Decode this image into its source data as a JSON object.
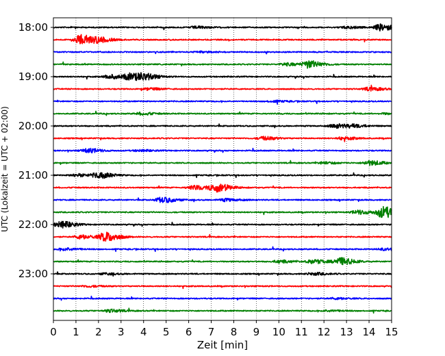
{
  "chart_data": {
    "type": "line",
    "xlabel": "Zeit  [min]",
    "ylabel": "UTC (Lokalzeit = UTC + 02:00)",
    "xlim": [
      0,
      15
    ],
    "x_ticks": [
      0,
      1,
      2,
      3,
      4,
      5,
      6,
      7,
      8,
      9,
      10,
      11,
      12,
      13,
      14,
      15
    ],
    "y_tick_labels": [
      "18:00",
      "19:00",
      "20:00",
      "21:00",
      "22:00",
      "23:00"
    ],
    "grid_vertical": "dotted",
    "trace_interval_min": 15,
    "start_time": "18:00",
    "trace_colors": [
      "#000000",
      "#ff0000",
      "#0000ff",
      "#008000"
    ],
    "traces": [
      {
        "start": "18:00",
        "events": [
          {
            "t": 14.5,
            "amp": 0.5
          },
          {
            "t": 6.3,
            "amp": 0.15
          },
          {
            "t": 13.0,
            "amp": 0.15
          }
        ]
      },
      {
        "start": "18:15",
        "events": [
          {
            "t": 1.2,
            "amp": 0.75
          },
          {
            "t": 2.0,
            "amp": 0.3
          }
        ]
      },
      {
        "start": "18:30",
        "events": [
          {
            "t": 6.5,
            "amp": 0.1
          }
        ]
      },
      {
        "start": "18:45",
        "events": [
          {
            "t": 11.3,
            "amp": 0.55
          },
          {
            "t": 10.3,
            "amp": 0.2
          }
        ]
      },
      {
        "start": "19:00",
        "events": [
          {
            "t": 3.4,
            "amp": 0.5
          },
          {
            "t": 4.0,
            "amp": 0.4
          },
          {
            "t": 2.5,
            "amp": 0.3
          }
        ]
      },
      {
        "start": "19:15",
        "events": [
          {
            "t": 14.0,
            "amp": 0.25
          },
          {
            "t": 4.2,
            "amp": 0.15
          }
        ]
      },
      {
        "start": "19:30",
        "events": [
          {
            "t": 9.7,
            "amp": 0.12
          }
        ]
      },
      {
        "start": "19:45",
        "events": [
          {
            "t": 3.9,
            "amp": 0.18
          },
          {
            "t": 14.7,
            "amp": 0.1
          }
        ]
      },
      {
        "start": "20:00",
        "events": [
          {
            "t": 12.5,
            "amp": 0.3
          },
          {
            "t": 13.3,
            "amp": 0.2
          }
        ]
      },
      {
        "start": "20:15",
        "events": [
          {
            "t": 9.3,
            "amp": 0.25
          },
          {
            "t": 12.8,
            "amp": 0.2
          }
        ]
      },
      {
        "start": "20:30",
        "events": [
          {
            "t": 1.5,
            "amp": 0.3
          },
          {
            "t": 3.8,
            "amp": 0.12
          }
        ]
      },
      {
        "start": "20:45",
        "events": [
          {
            "t": 14.0,
            "amp": 0.35
          },
          {
            "t": 12.0,
            "amp": 0.15
          }
        ]
      },
      {
        "start": "21:00",
        "events": [
          {
            "t": 2.0,
            "amp": 0.45
          },
          {
            "t": 1.0,
            "amp": 0.2
          }
        ]
      },
      {
        "start": "21:15",
        "events": [
          {
            "t": 7.2,
            "amp": 0.65
          },
          {
            "t": 6.2,
            "amp": 0.3
          }
        ]
      },
      {
        "start": "21:30",
        "events": [
          {
            "t": 4.8,
            "amp": 0.4
          },
          {
            "t": 7.6,
            "amp": 0.2
          }
        ]
      },
      {
        "start": "21:45",
        "events": [
          {
            "t": 14.6,
            "amp": 0.85
          },
          {
            "t": 13.5,
            "amp": 0.3
          }
        ]
      },
      {
        "start": "22:00",
        "events": [
          {
            "t": 0.3,
            "amp": 0.5
          }
        ]
      },
      {
        "start": "22:15",
        "events": [
          {
            "t": 2.3,
            "amp": 0.7
          },
          {
            "t": 1.2,
            "amp": 0.3
          }
        ]
      },
      {
        "start": "22:30",
        "events": [
          {
            "t": 0.5,
            "amp": 0.2
          },
          {
            "t": 14.6,
            "amp": 0.15
          }
        ]
      },
      {
        "start": "22:45",
        "events": [
          {
            "t": 12.7,
            "amp": 0.55
          },
          {
            "t": 11.5,
            "amp": 0.3
          },
          {
            "t": 10.0,
            "amp": 0.2
          }
        ]
      },
      {
        "start": "23:00",
        "events": [
          {
            "t": 11.5,
            "amp": 0.2
          },
          {
            "t": 2.3,
            "amp": 0.12
          }
        ]
      },
      {
        "start": "23:15",
        "events": [
          {
            "t": 1.5,
            "amp": 0.12
          }
        ]
      },
      {
        "start": "23:30",
        "events": [
          {
            "t": 12.5,
            "amp": 0.12
          }
        ]
      },
      {
        "start": "23:45",
        "events": [
          {
            "t": 2.5,
            "amp": 0.2
          },
          {
            "t": 12.2,
            "amp": 0.12
          }
        ]
      }
    ]
  }
}
